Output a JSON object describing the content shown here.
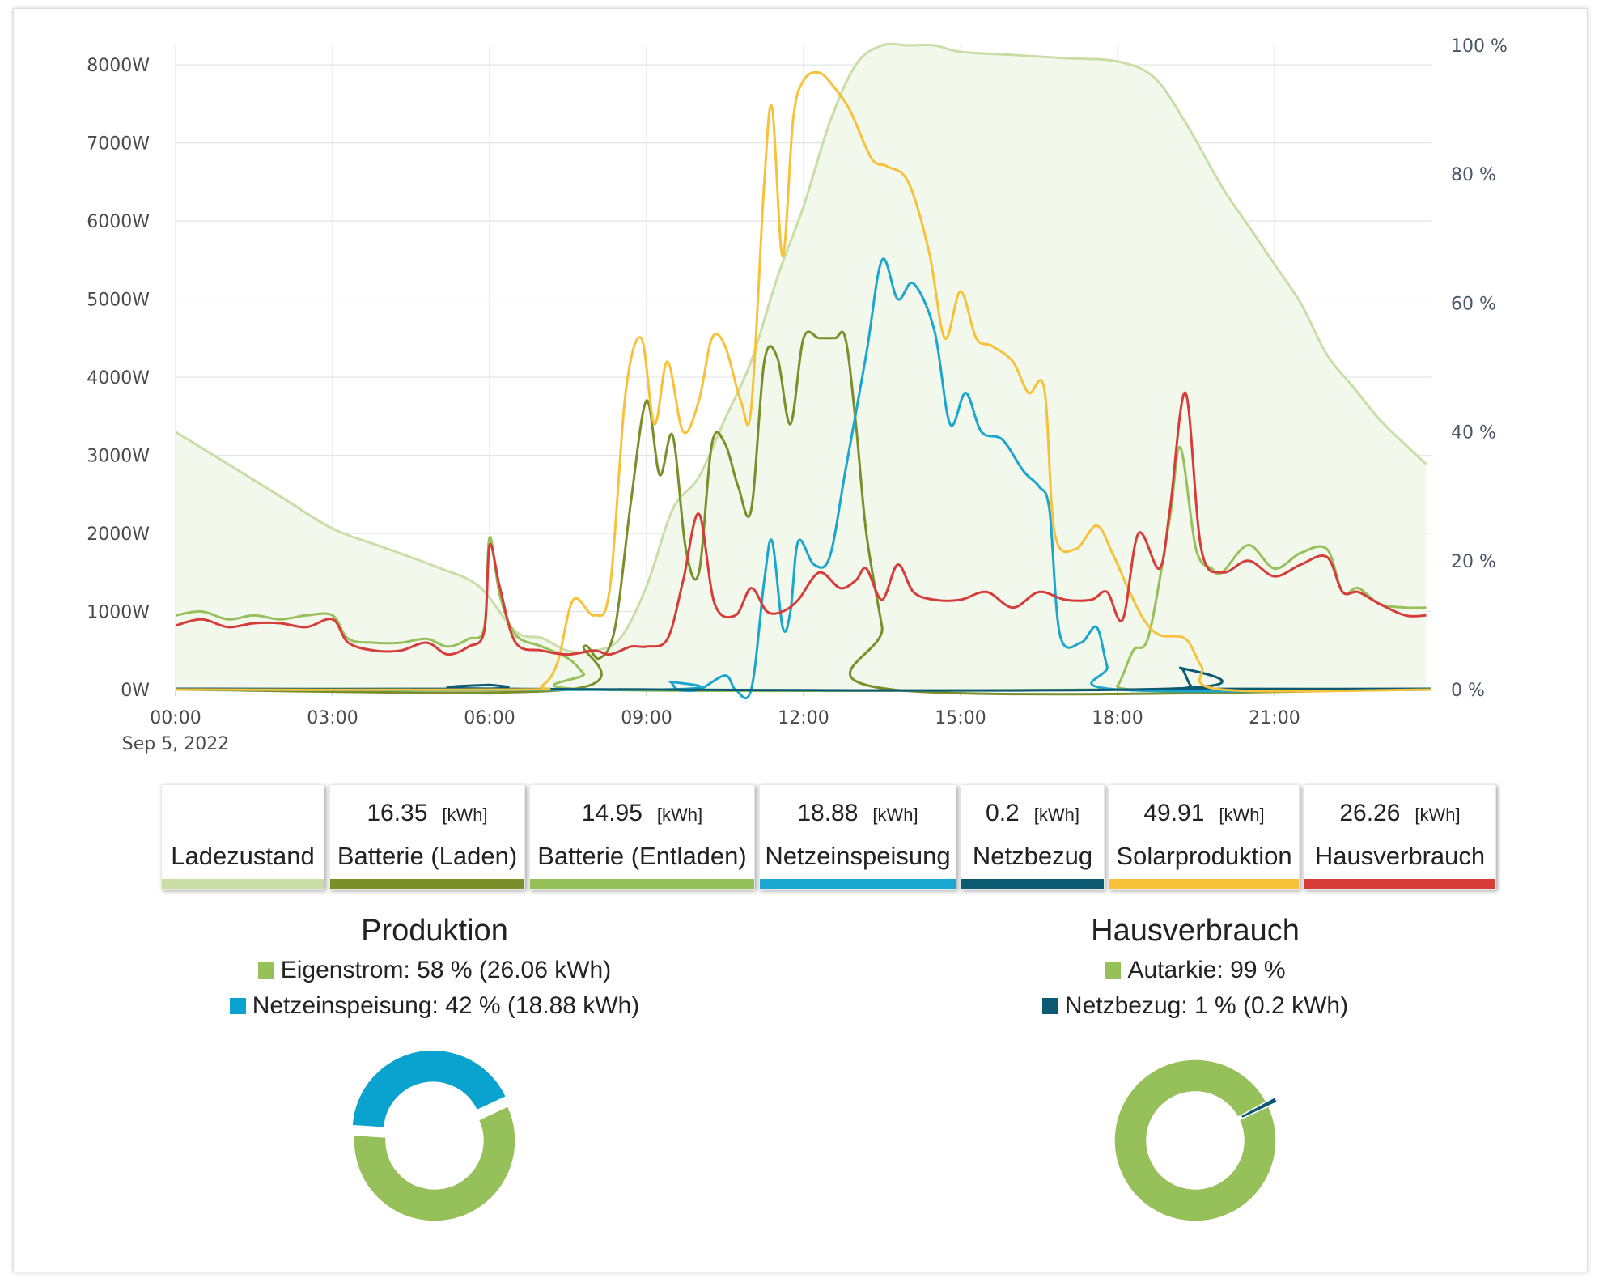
{
  "chart_data": {
    "type": "line",
    "date_label": "Sep 5, 2022",
    "x_tick_labels": [
      "00:00",
      "03:00",
      "06:00",
      "09:00",
      "12:00",
      "15:00",
      "18:00",
      "21:00"
    ],
    "x_range_hours": [
      0,
      24
    ],
    "y_left": {
      "ticks": [
        "0W",
        "1000W",
        "2000W",
        "3000W",
        "4000W",
        "5000W",
        "6000W",
        "7000W",
        "8000W"
      ],
      "range": [
        0,
        8250
      ]
    },
    "y_right": {
      "ticks": [
        "0 %",
        "20 %",
        "40 %",
        "60 %",
        "80 %",
        "100 %"
      ],
      "range": [
        0,
        100
      ]
    },
    "series": [
      {
        "key": "soc",
        "name": "Ladezustand",
        "axis": "right",
        "color": "#c8dea6",
        "fill": "#f3f8ec",
        "points": [
          [
            0,
            40
          ],
          [
            1,
            35
          ],
          [
            2,
            30
          ],
          [
            3,
            25
          ],
          [
            4,
            22
          ],
          [
            5,
            19
          ],
          [
            5.8,
            16
          ],
          [
            6.5,
            9
          ],
          [
            7,
            8
          ],
          [
            7.5,
            6
          ],
          [
            8,
            6
          ],
          [
            8.5,
            8
          ],
          [
            9,
            16
          ],
          [
            9.5,
            28
          ],
          [
            10,
            33
          ],
          [
            10.5,
            42
          ],
          [
            11,
            51
          ],
          [
            11.5,
            64
          ],
          [
            12,
            75
          ],
          [
            12.5,
            88
          ],
          [
            13,
            97
          ],
          [
            13.5,
            100
          ],
          [
            14,
            100
          ],
          [
            14.5,
            100
          ],
          [
            15,
            99
          ],
          [
            16,
            98.5
          ],
          [
            17,
            98
          ],
          [
            18,
            97.5
          ],
          [
            18.7,
            95
          ],
          [
            19.3,
            88
          ],
          [
            20,
            78
          ],
          [
            20.5,
            72
          ],
          [
            21,
            66
          ],
          [
            21.5,
            60
          ],
          [
            22,
            52
          ],
          [
            22.5,
            47
          ],
          [
            23,
            42
          ],
          [
            23.5,
            38
          ],
          [
            23.9,
            35
          ]
        ]
      },
      {
        "key": "bat_laden",
        "name": "Batterie (Laden)",
        "axis": "left",
        "color": "#7a8f2a",
        "points": [
          [
            0,
            0
          ],
          [
            7.5,
            0
          ],
          [
            7.8,
            550
          ],
          [
            8.1,
            400
          ],
          [
            8.4,
            800
          ],
          [
            8.7,
            2400
          ],
          [
            9,
            3700
          ],
          [
            9.25,
            2750
          ],
          [
            9.5,
            3250
          ],
          [
            9.75,
            1800
          ],
          [
            10,
            1500
          ],
          [
            10.25,
            3150
          ],
          [
            10.5,
            3150
          ],
          [
            10.75,
            2600
          ],
          [
            11,
            2300
          ],
          [
            11.25,
            4200
          ],
          [
            11.5,
            4250
          ],
          [
            11.75,
            3400
          ],
          [
            12,
            4500
          ],
          [
            12.3,
            4500
          ],
          [
            12.6,
            4500
          ],
          [
            12.8,
            4500
          ],
          [
            13,
            3400
          ],
          [
            13.2,
            2000
          ],
          [
            13.5,
            800
          ],
          [
            13.7,
            0
          ],
          [
            24,
            0
          ]
        ]
      },
      {
        "key": "bat_entladen",
        "name": "Batterie (Entladen)",
        "axis": "left",
        "color": "#96c05a",
        "points": [
          [
            0,
            950
          ],
          [
            0.5,
            1000
          ],
          [
            1,
            900
          ],
          [
            1.5,
            950
          ],
          [
            2,
            900
          ],
          [
            2.5,
            950
          ],
          [
            3,
            950
          ],
          [
            3.3,
            650
          ],
          [
            3.8,
            600
          ],
          [
            4.3,
            600
          ],
          [
            4.8,
            650
          ],
          [
            5.2,
            550
          ],
          [
            5.6,
            650
          ],
          [
            5.9,
            800
          ],
          [
            6,
            1950
          ],
          [
            6.2,
            1200
          ],
          [
            6.5,
            700
          ],
          [
            7,
            550
          ],
          [
            7.5,
            400
          ],
          [
            7.8,
            200
          ],
          [
            8,
            0
          ],
          [
            17.7,
            0
          ],
          [
            18,
            50
          ],
          [
            18.3,
            500
          ],
          [
            18.6,
            700
          ],
          [
            19,
            2200
          ],
          [
            19.2,
            3100
          ],
          [
            19.5,
            1800
          ],
          [
            19.8,
            1550
          ],
          [
            20,
            1500
          ],
          [
            20.5,
            1850
          ],
          [
            21,
            1550
          ],
          [
            21.5,
            1750
          ],
          [
            22,
            1800
          ],
          [
            22.3,
            1250
          ],
          [
            22.6,
            1300
          ],
          [
            23,
            1100
          ],
          [
            23.5,
            1050
          ],
          [
            23.9,
            1050
          ]
        ]
      },
      {
        "key": "netzeinspeisung",
        "name": "Netzeinspeisung",
        "axis": "left",
        "color": "#1aa6cf",
        "points": [
          [
            0,
            0
          ],
          [
            9.3,
            0
          ],
          [
            9.45,
            100
          ],
          [
            9.6,
            0
          ],
          [
            10,
            0
          ],
          [
            10.5,
            180
          ],
          [
            10.7,
            0
          ],
          [
            11,
            0
          ],
          [
            11.25,
            1400
          ],
          [
            11.4,
            1900
          ],
          [
            11.6,
            800
          ],
          [
            11.75,
            1000
          ],
          [
            11.9,
            1900
          ],
          [
            12.2,
            1600
          ],
          [
            12.5,
            1700
          ],
          [
            12.8,
            2800
          ],
          [
            13.2,
            4300
          ],
          [
            13.5,
            5500
          ],
          [
            13.8,
            5000
          ],
          [
            14.1,
            5200
          ],
          [
            14.5,
            4600
          ],
          [
            14.8,
            3400
          ],
          [
            15.1,
            3800
          ],
          [
            15.4,
            3300
          ],
          [
            15.8,
            3200
          ],
          [
            16.2,
            2800
          ],
          [
            16.5,
            2600
          ],
          [
            16.7,
            2300
          ],
          [
            16.9,
            700
          ],
          [
            17.3,
            600
          ],
          [
            17.6,
            800
          ],
          [
            17.8,
            300
          ],
          [
            18,
            0
          ],
          [
            24,
            0
          ]
        ]
      },
      {
        "key": "netzbezug",
        "name": "Netzbezug",
        "axis": "left",
        "color": "#0b5a72",
        "points": [
          [
            0,
            10
          ],
          [
            5.9,
            10
          ],
          [
            6,
            60
          ],
          [
            6.2,
            10
          ],
          [
            19,
            10
          ],
          [
            19.2,
            280
          ],
          [
            19.4,
            50
          ],
          [
            19.6,
            10
          ],
          [
            24,
            10
          ]
        ]
      },
      {
        "key": "solar",
        "name": "Solarproduktion",
        "axis": "left",
        "color": "#f7c23a",
        "points": [
          [
            0,
            0
          ],
          [
            6.5,
            0
          ],
          [
            7,
            50
          ],
          [
            7.3,
            350
          ],
          [
            7.6,
            1150
          ],
          [
            8,
            950
          ],
          [
            8.3,
            1300
          ],
          [
            8.6,
            3800
          ],
          [
            8.9,
            4500
          ],
          [
            9.15,
            3400
          ],
          [
            9.4,
            4200
          ],
          [
            9.7,
            3300
          ],
          [
            10,
            3700
          ],
          [
            10.25,
            4500
          ],
          [
            10.5,
            4400
          ],
          [
            10.8,
            3700
          ],
          [
            11,
            3600
          ],
          [
            11.25,
            6500
          ],
          [
            11.4,
            7450
          ],
          [
            11.6,
            5550
          ],
          [
            11.8,
            7300
          ],
          [
            12,
            7800
          ],
          [
            12.3,
            7900
          ],
          [
            12.6,
            7700
          ],
          [
            12.9,
            7400
          ],
          [
            13.3,
            6800
          ],
          [
            13.6,
            6700
          ],
          [
            14,
            6500
          ],
          [
            14.4,
            5600
          ],
          [
            14.7,
            4500
          ],
          [
            15,
            5100
          ],
          [
            15.3,
            4500
          ],
          [
            15.6,
            4400
          ],
          [
            16,
            4200
          ],
          [
            16.3,
            3800
          ],
          [
            16.6,
            3850
          ],
          [
            16.8,
            2000
          ],
          [
            17.2,
            1800
          ],
          [
            17.6,
            2100
          ],
          [
            17.9,
            1750
          ],
          [
            18.2,
            1300
          ],
          [
            18.5,
            900
          ],
          [
            18.8,
            700
          ],
          [
            19.3,
            650
          ],
          [
            19.6,
            300
          ],
          [
            20,
            0
          ],
          [
            24,
            0
          ]
        ]
      },
      {
        "key": "hausverbrauch",
        "name": "Hausverbrauch",
        "axis": "left",
        "color": "#d63c3a",
        "points": [
          [
            0,
            820
          ],
          [
            0.5,
            900
          ],
          [
            1,
            800
          ],
          [
            1.5,
            850
          ],
          [
            2,
            850
          ],
          [
            2.5,
            800
          ],
          [
            3,
            900
          ],
          [
            3.3,
            600
          ],
          [
            3.8,
            500
          ],
          [
            4.3,
            500
          ],
          [
            4.8,
            600
          ],
          [
            5.2,
            450
          ],
          [
            5.6,
            550
          ],
          [
            5.9,
            750
          ],
          [
            6,
            1850
          ],
          [
            6.2,
            1300
          ],
          [
            6.5,
            600
          ],
          [
            7,
            500
          ],
          [
            7.5,
            450
          ],
          [
            8,
            500
          ],
          [
            8.3,
            450
          ],
          [
            8.7,
            550
          ],
          [
            9,
            550
          ],
          [
            9.4,
            650
          ],
          [
            9.7,
            1400
          ],
          [
            10,
            2250
          ],
          [
            10.3,
            1100
          ],
          [
            10.7,
            950
          ],
          [
            11,
            1300
          ],
          [
            11.3,
            1000
          ],
          [
            11.6,
            1000
          ],
          [
            11.9,
            1150
          ],
          [
            12.3,
            1500
          ],
          [
            12.7,
            1300
          ],
          [
            13,
            1400
          ],
          [
            13.2,
            1550
          ],
          [
            13.5,
            1150
          ],
          [
            13.8,
            1600
          ],
          [
            14.1,
            1250
          ],
          [
            14.5,
            1150
          ],
          [
            15,
            1150
          ],
          [
            15.5,
            1250
          ],
          [
            16,
            1050
          ],
          [
            16.5,
            1250
          ],
          [
            17,
            1150
          ],
          [
            17.5,
            1150
          ],
          [
            17.8,
            1250
          ],
          [
            18.1,
            900
          ],
          [
            18.4,
            2000
          ],
          [
            18.8,
            1550
          ],
          [
            19,
            2300
          ],
          [
            19.3,
            3800
          ],
          [
            19.6,
            1800
          ],
          [
            20,
            1500
          ],
          [
            20.5,
            1650
          ],
          [
            21,
            1450
          ],
          [
            21.5,
            1600
          ],
          [
            22,
            1700
          ],
          [
            22.3,
            1250
          ],
          [
            22.6,
            1250
          ],
          [
            23,
            1100
          ],
          [
            23.5,
            950
          ],
          [
            23.9,
            950
          ]
        ]
      }
    ]
  },
  "legend": [
    {
      "value": "",
      "unit": "",
      "label": "Ladezustand",
      "color": "#c8dea6"
    },
    {
      "value": "16.35",
      "unit": "[kWh]",
      "label": "Batterie (Laden)",
      "color": "#7a8f2a"
    },
    {
      "value": "14.95",
      "unit": "[kWh]",
      "label": "Batterie (Entladen)",
      "color": "#96c05a"
    },
    {
      "value": "18.88",
      "unit": "[kWh]",
      "label": "Netzeinspeisung",
      "color": "#1aa6cf"
    },
    {
      "value": "0.2",
      "unit": "[kWh]",
      "label": "Netzbezug",
      "color": "#0b5a72"
    },
    {
      "value": "49.91",
      "unit": "[kWh]",
      "label": "Solarproduktion",
      "color": "#f7c23a"
    },
    {
      "value": "26.26",
      "unit": "[kWh]",
      "label": "Hausverbrauch",
      "color": "#d63c3a"
    }
  ],
  "produktion": {
    "title": "Produktion",
    "items": [
      {
        "text": "Eigenstrom: 58 % (26.06 kWh)",
        "percent": 58,
        "color": "#96c05a"
      },
      {
        "text": "Netzeinspeisung: 42 % (18.88 kWh)",
        "percent": 42,
        "color": "#0aa3cf"
      }
    ]
  },
  "hausverbrauch": {
    "title": "Hausverbrauch",
    "items": [
      {
        "text": "Autarkie: 99 %",
        "percent": 99,
        "color": "#96c05a"
      },
      {
        "text": "Netzbezug: 1 % (0.2 kWh)",
        "percent": 1,
        "color": "#0b5a72"
      }
    ]
  }
}
